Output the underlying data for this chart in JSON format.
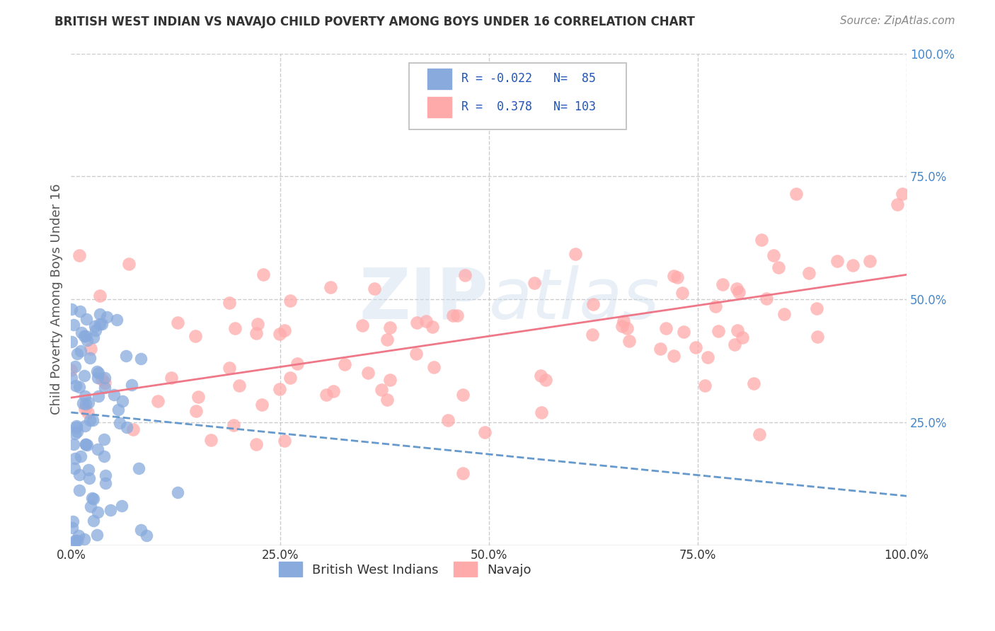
{
  "title": "BRITISH WEST INDIAN VS NAVAJO CHILD POVERTY AMONG BOYS UNDER 16 CORRELATION CHART",
  "source": "Source: ZipAtlas.com",
  "ylabel": "Child Poverty Among Boys Under 16",
  "xlim": [
    0,
    1
  ],
  "ylim": [
    0,
    1
  ],
  "blue_R": -0.022,
  "blue_N": 85,
  "pink_R": 0.378,
  "pink_N": 103,
  "blue_color": "#88AADD",
  "pink_color": "#FFAAAA",
  "blue_line_color": "#6699CC",
  "pink_line_color": "#EE7788",
  "legend_label_blue": "British West Indians",
  "legend_label_pink": "Navajo",
  "background_color": "#FFFFFF",
  "grid_color": "#CCCCCC",
  "tick_color": "#4488CC",
  "title_color": "#333333",
  "source_color": "#888888"
}
